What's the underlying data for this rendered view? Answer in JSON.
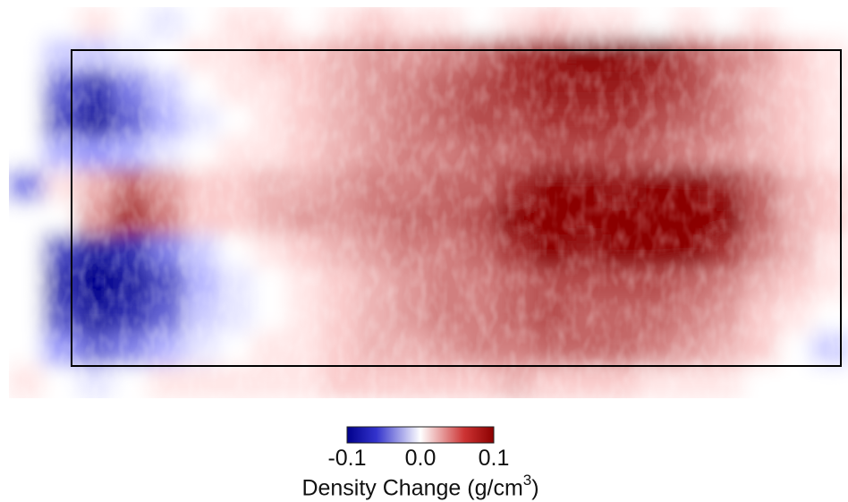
{
  "chart_data": {
    "type": "heatmap",
    "title": "",
    "xlabel": "",
    "ylabel": "",
    "colorbar": {
      "label_prefix": "Density Change (g/cm",
      "label_superscript": "3",
      "label_suffix": ")",
      "min": -0.1,
      "max": 0.1,
      "ticks": [
        -0.1,
        0.0,
        0.1
      ],
      "tick_labels": [
        "-0.1",
        "0.0",
        "0.1"
      ],
      "colormap": [
        "#00008b",
        "#ffffff",
        "#8b0000"
      ]
    },
    "grid_rows": 12,
    "grid_cols": 24,
    "values": [
      [
        0.0,
        0.0,
        0.01,
        0.0,
        -0.01,
        0.0,
        0.01,
        0.01,
        0.0,
        0.01,
        0.02,
        0.01,
        0.01,
        0.0,
        0.01,
        0.02,
        0.01,
        0.01,
        0.0,
        0.01,
        0.0,
        0.01,
        0.0,
        0.0
      ],
      [
        0.0,
        -0.02,
        -0.02,
        -0.01,
        0.0,
        0.01,
        0.01,
        0.02,
        0.02,
        0.03,
        0.04,
        0.04,
        0.05,
        0.06,
        0.08,
        0.09,
        0.1,
        0.1,
        0.09,
        0.07,
        0.05,
        0.04,
        0.02,
        0.01
      ],
      [
        0.0,
        -0.06,
        -0.08,
        -0.05,
        -0.02,
        0.0,
        0.01,
        0.01,
        0.02,
        0.03,
        0.04,
        0.05,
        0.06,
        0.07,
        0.08,
        0.09,
        0.09,
        0.09,
        0.08,
        0.07,
        0.05,
        0.03,
        0.02,
        0.01
      ],
      [
        0.0,
        -0.07,
        -0.09,
        -0.06,
        -0.03,
        -0.01,
        0.0,
        0.01,
        0.02,
        0.03,
        0.04,
        0.05,
        0.06,
        0.07,
        0.07,
        0.08,
        0.08,
        0.08,
        0.07,
        0.06,
        0.05,
        0.03,
        0.02,
        0.01
      ],
      [
        0.0,
        -0.03,
        -0.04,
        -0.03,
        -0.01,
        0.0,
        0.01,
        0.01,
        0.02,
        0.03,
        0.04,
        0.05,
        0.05,
        0.06,
        0.06,
        0.07,
        0.07,
        0.07,
        0.06,
        0.05,
        0.04,
        0.03,
        0.02,
        0.01
      ],
      [
        -0.05,
        0.01,
        0.03,
        0.06,
        0.04,
        0.02,
        0.02,
        0.03,
        0.03,
        0.04,
        0.05,
        0.05,
        0.06,
        0.06,
        0.08,
        0.1,
        0.1,
        0.09,
        0.1,
        0.1,
        0.09,
        0.06,
        0.03,
        0.02
      ],
      [
        0.0,
        0.0,
        0.04,
        0.08,
        0.05,
        0.02,
        0.02,
        0.03,
        0.04,
        0.04,
        0.05,
        0.06,
        0.06,
        0.07,
        0.1,
        0.1,
        0.1,
        0.1,
        0.1,
        0.1,
        0.1,
        0.06,
        0.03,
        0.02
      ],
      [
        0.0,
        -0.07,
        -0.09,
        -0.08,
        -0.05,
        -0.02,
        0.0,
        0.01,
        0.02,
        0.03,
        0.04,
        0.05,
        0.05,
        0.06,
        0.08,
        0.1,
        0.09,
        0.1,
        0.1,
        0.1,
        0.08,
        0.05,
        0.03,
        0.01
      ],
      [
        0.0,
        -0.08,
        -0.1,
        -0.09,
        -0.07,
        -0.03,
        -0.01,
        0.0,
        0.01,
        0.02,
        0.03,
        0.04,
        0.05,
        0.05,
        0.06,
        0.07,
        0.07,
        0.07,
        0.07,
        0.06,
        0.05,
        0.03,
        0.02,
        0.01
      ],
      [
        0.0,
        -0.07,
        -0.09,
        -0.08,
        -0.06,
        -0.02,
        -0.01,
        0.0,
        0.01,
        0.02,
        0.03,
        0.04,
        0.05,
        0.05,
        0.06,
        0.07,
        0.06,
        0.06,
        0.06,
        0.05,
        0.04,
        0.02,
        0.01,
        0.0
      ],
      [
        0.0,
        -0.04,
        -0.06,
        -0.05,
        -0.03,
        -0.01,
        0.0,
        0.01,
        0.01,
        0.02,
        0.03,
        0.03,
        0.04,
        0.05,
        0.05,
        0.06,
        0.06,
        0.06,
        0.05,
        0.04,
        0.03,
        0.02,
        0.0,
        -0.02
      ],
      [
        0.01,
        0.0,
        -0.01,
        0.0,
        0.01,
        0.01,
        0.01,
        0.01,
        0.01,
        0.02,
        0.02,
        0.02,
        0.02,
        0.02,
        0.03,
        0.02,
        0.02,
        0.02,
        0.01,
        0.01,
        0.01,
        0.0,
        0.0,
        0.0
      ]
    ]
  }
}
